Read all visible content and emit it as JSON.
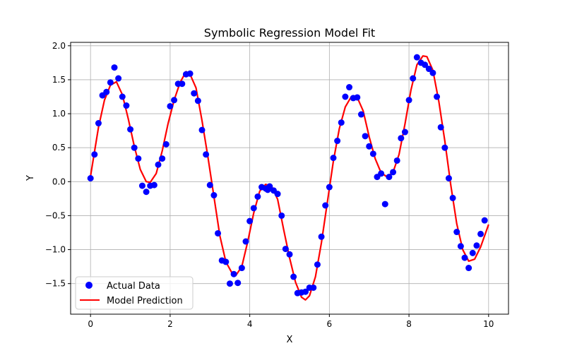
{
  "chart_data": {
    "type": "scatter",
    "title": "Symbolic Regression Model Fit",
    "xlabel": "X",
    "ylabel": "Y",
    "xlim": [
      -0.5,
      10.5
    ],
    "ylim": [
      -1.95,
      2.05
    ],
    "xticks": [
      0,
      2,
      4,
      6,
      8,
      10
    ],
    "xtick_labels": [
      "0",
      "2",
      "4",
      "6",
      "8",
      "10"
    ],
    "yticks": [
      -1.5,
      -1.0,
      -0.5,
      0.0,
      0.5,
      1.0,
      1.5,
      2.0
    ],
    "ytick_labels": [
      "−1.5",
      "−1.0",
      "−0.5",
      "0.0",
      "0.5",
      "1.0",
      "1.5",
      "2.0"
    ],
    "grid": true,
    "legend_position": "lower-left",
    "series": [
      {
        "name": "Actual Data",
        "kind": "scatter",
        "color": "#0000ff",
        "points": [
          [
            0.0,
            0.05
          ],
          [
            0.1,
            0.4
          ],
          [
            0.2,
            0.86
          ],
          [
            0.3,
            1.27
          ],
          [
            0.4,
            1.32
          ],
          [
            0.5,
            1.46
          ],
          [
            0.6,
            1.68
          ],
          [
            0.7,
            1.52
          ],
          [
            0.8,
            1.25
          ],
          [
            0.9,
            1.12
          ],
          [
            1.0,
            0.77
          ],
          [
            1.1,
            0.5
          ],
          [
            1.2,
            0.34
          ],
          [
            1.3,
            -0.06
          ],
          [
            1.4,
            -0.15
          ],
          [
            1.5,
            -0.06
          ],
          [
            1.6,
            -0.05
          ],
          [
            1.7,
            0.25
          ],
          [
            1.8,
            0.34
          ],
          [
            1.9,
            0.55
          ],
          [
            2.0,
            1.11
          ],
          [
            2.1,
            1.2
          ],
          [
            2.2,
            1.44
          ],
          [
            2.3,
            1.44
          ],
          [
            2.4,
            1.58
          ],
          [
            2.5,
            1.59
          ],
          [
            2.6,
            1.3
          ],
          [
            2.7,
            1.19
          ],
          [
            2.8,
            0.76
          ],
          [
            2.9,
            0.4
          ],
          [
            3.0,
            -0.05
          ],
          [
            3.1,
            -0.2
          ],
          [
            3.2,
            -0.76
          ],
          [
            3.3,
            -1.16
          ],
          [
            3.4,
            -1.18
          ],
          [
            3.5,
            -1.5
          ],
          [
            3.6,
            -1.36
          ],
          [
            3.7,
            -1.49
          ],
          [
            3.8,
            -1.27
          ],
          [
            3.9,
            -0.88
          ],
          [
            4.0,
            -0.58
          ],
          [
            4.1,
            -0.39
          ],
          [
            4.2,
            -0.22
          ],
          [
            4.3,
            -0.08
          ],
          [
            4.4,
            -0.1
          ],
          [
            4.45,
            -0.12
          ],
          [
            4.5,
            -0.07
          ],
          [
            4.6,
            -0.13
          ],
          [
            4.7,
            -0.18
          ],
          [
            4.8,
            -0.5
          ],
          [
            4.9,
            -0.99
          ],
          [
            5.0,
            -1.07
          ],
          [
            5.1,
            -1.4
          ],
          [
            5.2,
            -1.64
          ],
          [
            5.3,
            -1.63
          ],
          [
            5.4,
            -1.62
          ],
          [
            5.5,
            -1.56
          ],
          [
            5.6,
            -1.56
          ],
          [
            5.7,
            -1.22
          ],
          [
            5.8,
            -0.81
          ],
          [
            5.9,
            -0.35
          ],
          [
            6.0,
            -0.08
          ],
          [
            6.1,
            0.35
          ],
          [
            6.2,
            0.6
          ],
          [
            6.3,
            0.87
          ],
          [
            6.4,
            1.25
          ],
          [
            6.5,
            1.39
          ],
          [
            6.6,
            1.23
          ],
          [
            6.7,
            1.24
          ],
          [
            6.8,
            0.99
          ],
          [
            6.9,
            0.67
          ],
          [
            7.0,
            0.52
          ],
          [
            7.1,
            0.41
          ],
          [
            7.2,
            0.07
          ],
          [
            7.3,
            0.12
          ],
          [
            7.4,
            -0.33
          ],
          [
            7.5,
            0.07
          ],
          [
            7.6,
            0.14
          ],
          [
            7.7,
            0.31
          ],
          [
            7.8,
            0.64
          ],
          [
            7.9,
            0.73
          ],
          [
            8.0,
            1.2
          ],
          [
            8.1,
            1.52
          ],
          [
            8.2,
            1.83
          ],
          [
            8.3,
            1.75
          ],
          [
            8.4,
            1.72
          ],
          [
            8.5,
            1.66
          ],
          [
            8.6,
            1.6
          ],
          [
            8.7,
            1.25
          ],
          [
            8.8,
            0.8
          ],
          [
            8.9,
            0.5
          ],
          [
            9.0,
            0.05
          ],
          [
            9.1,
            -0.24
          ],
          [
            9.2,
            -0.74
          ],
          [
            9.3,
            -0.95
          ],
          [
            9.4,
            -1.12
          ],
          [
            9.5,
            -1.27
          ],
          [
            9.6,
            -1.05
          ],
          [
            9.7,
            -0.94
          ],
          [
            9.8,
            -0.77
          ],
          [
            9.9,
            -0.57
          ]
        ]
      },
      {
        "name": "Model Prediction",
        "kind": "line",
        "color": "#ff0000",
        "points": [
          [
            0.0,
            0.08
          ],
          [
            0.2,
            0.8
          ],
          [
            0.35,
            1.2
          ],
          [
            0.5,
            1.42
          ],
          [
            0.65,
            1.47
          ],
          [
            0.8,
            1.28
          ],
          [
            0.95,
            0.92
          ],
          [
            1.1,
            0.52
          ],
          [
            1.25,
            0.18
          ],
          [
            1.4,
            0.0
          ],
          [
            1.5,
            -0.01
          ],
          [
            1.65,
            0.12
          ],
          [
            1.8,
            0.45
          ],
          [
            1.95,
            0.86
          ],
          [
            2.1,
            1.2
          ],
          [
            2.25,
            1.46
          ],
          [
            2.4,
            1.62
          ],
          [
            2.5,
            1.58
          ],
          [
            2.65,
            1.38
          ],
          [
            2.8,
            0.9
          ],
          [
            2.95,
            0.36
          ],
          [
            3.1,
            -0.22
          ],
          [
            3.25,
            -0.8
          ],
          [
            3.4,
            -1.18
          ],
          [
            3.55,
            -1.34
          ],
          [
            3.65,
            -1.38
          ],
          [
            3.8,
            -1.25
          ],
          [
            3.95,
            -0.88
          ],
          [
            4.1,
            -0.46
          ],
          [
            4.25,
            -0.14
          ],
          [
            4.4,
            -0.04
          ],
          [
            4.55,
            -0.07
          ],
          [
            4.7,
            -0.26
          ],
          [
            4.85,
            -0.7
          ],
          [
            5.0,
            -1.12
          ],
          [
            5.15,
            -1.48
          ],
          [
            5.3,
            -1.7
          ],
          [
            5.4,
            -1.74
          ],
          [
            5.5,
            -1.68
          ],
          [
            5.65,
            -1.4
          ],
          [
            5.8,
            -0.9
          ],
          [
            5.95,
            -0.3
          ],
          [
            6.1,
            0.3
          ],
          [
            6.25,
            0.78
          ],
          [
            6.4,
            1.1
          ],
          [
            6.55,
            1.25
          ],
          [
            6.7,
            1.24
          ],
          [
            6.85,
            1.04
          ],
          [
            7.0,
            0.66
          ],
          [
            7.15,
            0.34
          ],
          [
            7.3,
            0.13
          ],
          [
            7.45,
            0.07
          ],
          [
            7.6,
            0.14
          ],
          [
            7.75,
            0.4
          ],
          [
            7.9,
            0.85
          ],
          [
            8.05,
            1.35
          ],
          [
            8.2,
            1.72
          ],
          [
            8.35,
            1.85
          ],
          [
            8.45,
            1.84
          ],
          [
            8.6,
            1.64
          ],
          [
            8.75,
            1.18
          ],
          [
            8.9,
            0.6
          ],
          [
            9.05,
            -0.05
          ],
          [
            9.2,
            -0.62
          ],
          [
            9.35,
            -1.0
          ],
          [
            9.5,
            -1.17
          ],
          [
            9.65,
            -1.14
          ],
          [
            9.8,
            -0.96
          ],
          [
            10.0,
            -0.63
          ]
        ]
      }
    ]
  }
}
